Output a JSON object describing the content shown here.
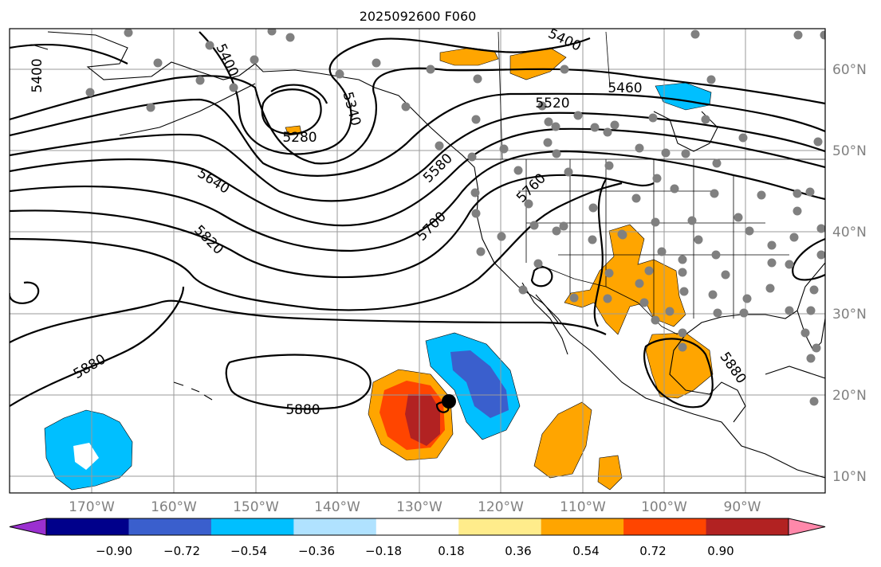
{
  "title": "2025092600 F060",
  "longitude_labels": [
    "170°W",
    "160°W",
    "150°W",
    "140°W",
    "130°W",
    "120°W",
    "110°W",
    "100°W",
    "90°W"
  ],
  "latitude_labels": [
    "60°N",
    "50°N",
    "40°N",
    "30°N",
    "20°N",
    "10°N"
  ],
  "contour_labels": [
    "5400",
    "5400",
    "5400",
    "5460",
    "5520",
    "5340",
    "5280",
    "5580",
    "5640",
    "5700",
    "5760",
    "5820",
    "5880",
    "5880",
    "5880"
  ],
  "colorbar": {
    "ticks": [
      "−0.90",
      "−0.72",
      "−0.54",
      "−0.36",
      "−0.18",
      "0.18",
      "0.36",
      "0.54",
      "0.72",
      "0.90"
    ],
    "colors": [
      "#9b30d0",
      "#00008b",
      "#3a5fcd",
      "#00bfff",
      "#b0e2ff",
      "#ffffff",
      "#ffec8b",
      "#ffa500",
      "#ff4500",
      "#b22222",
      "#ff88aa"
    ]
  },
  "storm_marker": "tropical-cyclone-center"
}
